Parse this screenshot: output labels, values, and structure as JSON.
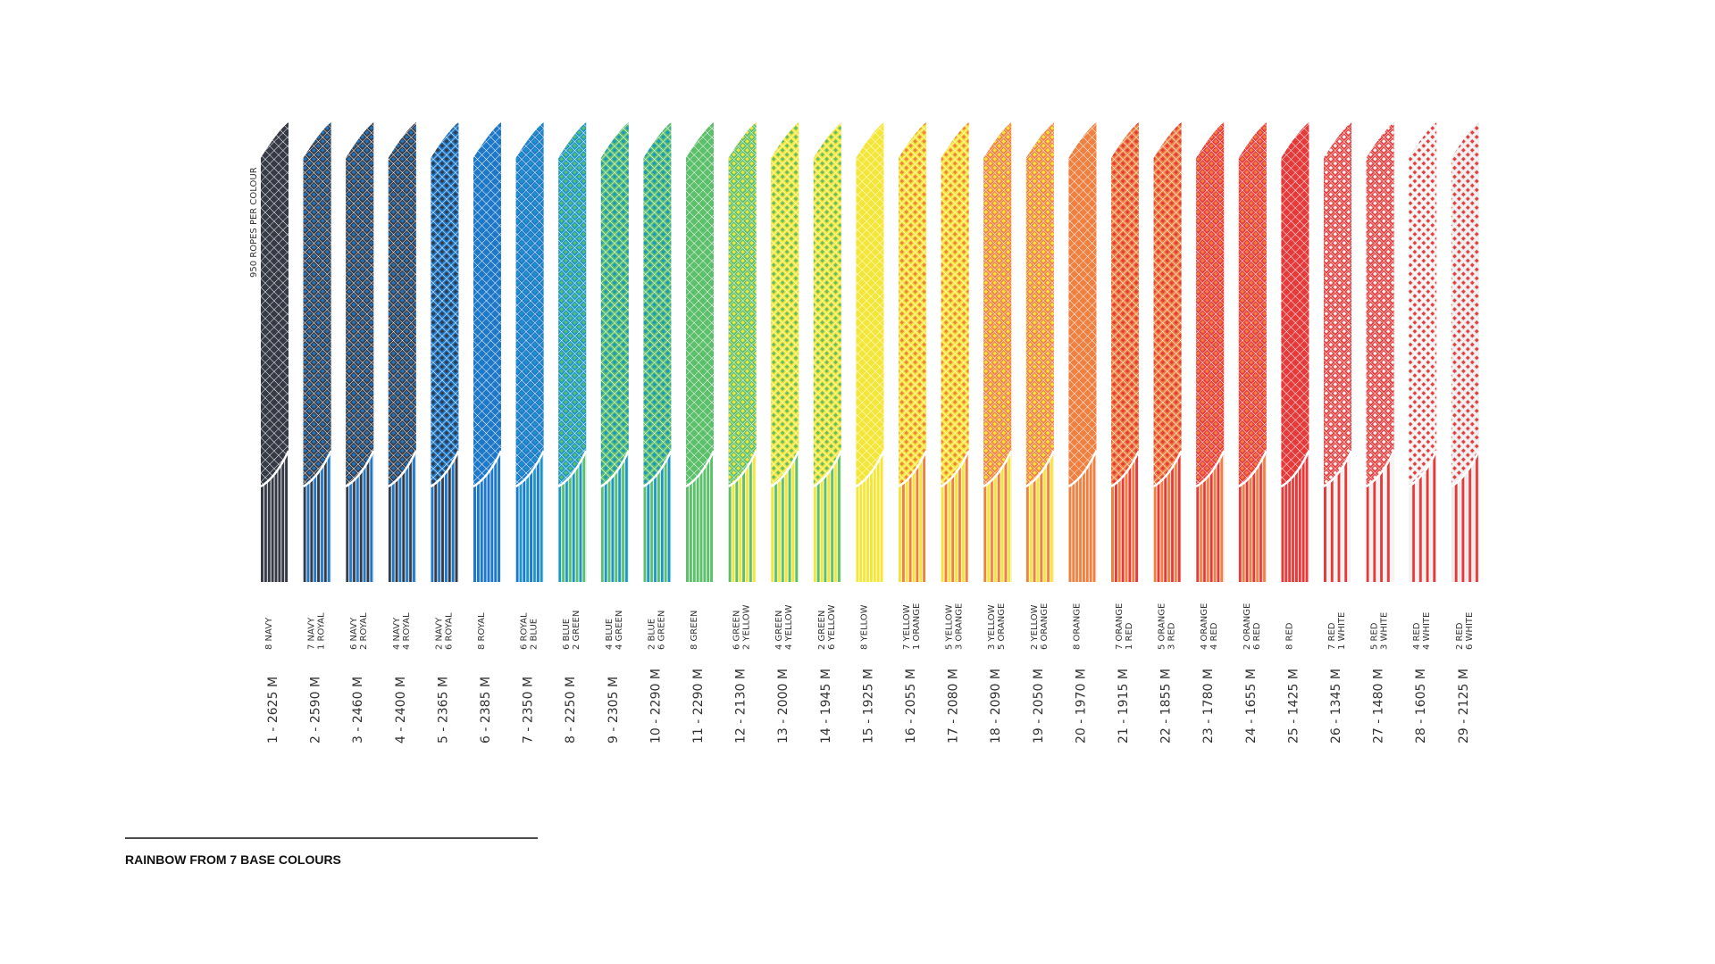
{
  "side_label": "950 ROPES PER COLOUR",
  "footer": "RAINBOW FROM 7 BASE COLOURS",
  "ropes": [
    {
      "mix": [
        "8 NAVY"
      ],
      "colors": [
        "#353a45"
      ],
      "label": "1 - 2625 M"
    },
    {
      "mix": [
        "7 NAVY",
        "1 ROYAL"
      ],
      "colors": [
        "#353a45",
        "#1e78c8"
      ],
      "label": "2 - 2590 M"
    },
    {
      "mix": [
        "6 NAVY",
        "2 ROYAL"
      ],
      "colors": [
        "#353a45",
        "#1e78c8"
      ],
      "label": "3 - 2460 M"
    },
    {
      "mix": [
        "4 NAVY",
        "4 ROYAL"
      ],
      "colors": [
        "#353a45",
        "#1e78c8"
      ],
      "label": "4 - 2400 M"
    },
    {
      "mix": [
        "2 NAVY",
        "6 ROYAL"
      ],
      "colors": [
        "#1e78c8",
        "#353a45"
      ],
      "label": "5 - 2365 M"
    },
    {
      "mix": [
        "8 ROYAL"
      ],
      "colors": [
        "#1e78c8"
      ],
      "label": "6 - 2385 M"
    },
    {
      "mix": [
        "6 ROYAL",
        "2 BLUE"
      ],
      "colors": [
        "#1e78c8",
        "#1a96c8"
      ],
      "label": "7 - 2350 M"
    },
    {
      "mix": [
        "6 BLUE",
        "2 GREEN"
      ],
      "colors": [
        "#1a96c8",
        "#5cbf6a"
      ],
      "label": "8 - 2250 M"
    },
    {
      "mix": [
        "4 BLUE",
        "4 GREEN"
      ],
      "colors": [
        "#5cbf6a",
        "#1a96c8"
      ],
      "label": "9 - 2305 M"
    },
    {
      "mix": [
        "2 BLUE",
        "6 GREEN"
      ],
      "colors": [
        "#5cbf6a",
        "#1a96c8"
      ],
      "label": "10 - 2290 M"
    },
    {
      "mix": [
        "8 GREEN"
      ],
      "colors": [
        "#5cbf6a"
      ],
      "label": "11 - 2290 M"
    },
    {
      "mix": [
        "6 GREEN",
        "2 YELLOW"
      ],
      "colors": [
        "#5cbf6a",
        "#f4e637"
      ],
      "label": "12 - 2130 M"
    },
    {
      "mix": [
        "4 GREEN",
        "4 YELLOW"
      ],
      "colors": [
        "#f4e637",
        "#5cbf6a"
      ],
      "label": "13 - 2000 M"
    },
    {
      "mix": [
        "2 GREEN",
        "6 YELLOW"
      ],
      "colors": [
        "#f4e637",
        "#5cbf6a"
      ],
      "label": "14 - 1945 M"
    },
    {
      "mix": [
        "8 YELLOW"
      ],
      "colors": [
        "#f4e637"
      ],
      "label": "15 - 1925 M"
    },
    {
      "mix": [
        "7 YELLOW",
        "1 ORANGE"
      ],
      "colors": [
        "#f4e637",
        "#f08040"
      ],
      "label": "16 - 2055 M"
    },
    {
      "mix": [
        "5 YELLOW",
        "3 ORANGE"
      ],
      "colors": [
        "#f4e637",
        "#f08040"
      ],
      "label": "17 - 2080 M"
    },
    {
      "mix": [
        "3 YELLOW",
        "5 ORANGE"
      ],
      "colors": [
        "#f08040",
        "#f4e637"
      ],
      "label": "18 - 2090 M"
    },
    {
      "mix": [
        "2 YELLOW",
        "6 ORANGE"
      ],
      "colors": [
        "#f08040",
        "#f4e637"
      ],
      "label": "19 - 2050 M"
    },
    {
      "mix": [
        "8 ORANGE"
      ],
      "colors": [
        "#f08040"
      ],
      "label": "20 - 1970 M"
    },
    {
      "mix": [
        "7 ORANGE",
        "1 RED"
      ],
      "colors": [
        "#f08040",
        "#e63a3a"
      ],
      "label": "21 - 1915 M"
    },
    {
      "mix": [
        "5 ORANGE",
        "3 RED"
      ],
      "colors": [
        "#f08040",
        "#e63a3a"
      ],
      "label": "22 - 1855 M"
    },
    {
      "mix": [
        "4 ORANGE",
        "4 RED"
      ],
      "colors": [
        "#e63a3a",
        "#f08040"
      ],
      "label": "23 - 1780 M"
    },
    {
      "mix": [
        "2 ORANGE",
        "6 RED"
      ],
      "colors": [
        "#e63a3a",
        "#f08040"
      ],
      "label": "24 - 1655 M"
    },
    {
      "mix": [
        "8 RED"
      ],
      "colors": [
        "#e63a3a"
      ],
      "label": "25 - 1425 M"
    },
    {
      "mix": [
        "7 RED",
        "1 WHITE"
      ],
      "colors": [
        "#e63a3a",
        "#f2f2f2"
      ],
      "label": "26 - 1345 M"
    },
    {
      "mix": [
        "5 RED",
        "3 WHITE"
      ],
      "colors": [
        "#e63a3a",
        "#f2f2f2"
      ],
      "label": "27 - 1480 M"
    },
    {
      "mix": [
        "4 RED",
        "4 WHITE"
      ],
      "colors": [
        "#f2f2f2",
        "#e63a3a"
      ],
      "label": "28 - 1605 M"
    },
    {
      "mix": [
        "2 RED",
        "6 WHITE"
      ],
      "colors": [
        "#ebebeb",
        "#e63a3a"
      ],
      "label": "29 - 2125 M"
    }
  ]
}
